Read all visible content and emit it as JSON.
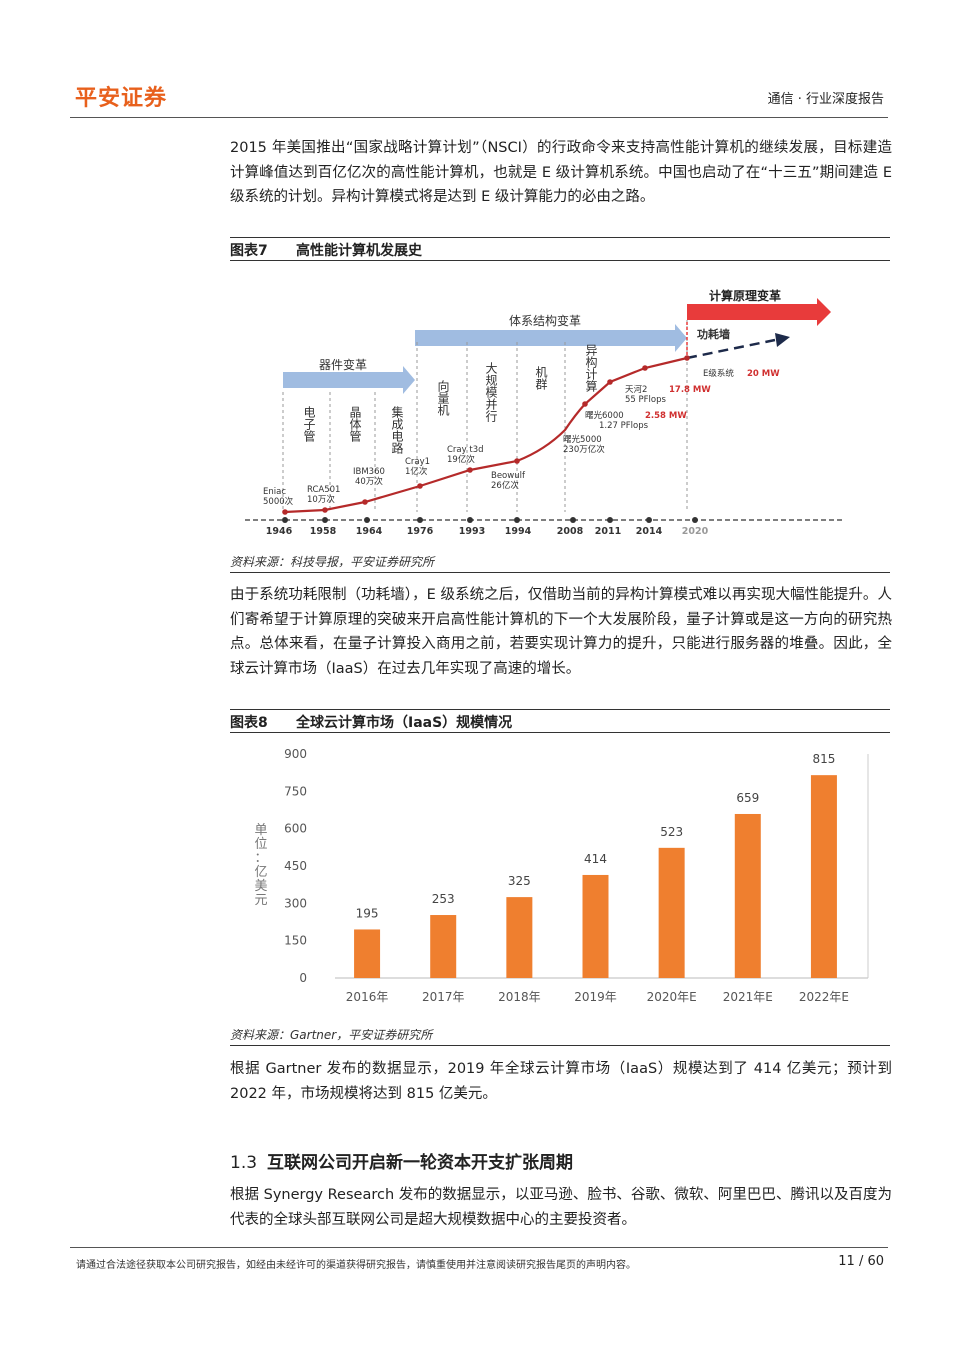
{
  "header": {
    "logo": "平安证券",
    "doc_type": "通信 · 行业深度报告"
  },
  "body": {
    "para1": "2015 年美国推出“国家战略计算计划”（NSCI）的行政命令来支持高性能计算机的继续发展，目标建造计算峰值达到百亿亿次的高性能计算机，也就是 E 级计算机系统。中国也启动了在“十三五”期间建造 E 级系统的计划。异构计算模式将是达到 E 级计算能力的必由之路。",
    "para2": "由于系统功耗限制（功耗墙），E 级系统之后，仅借助当前的异构计算模式难以再实现大幅性能提升。人们寄希望于计算原理的突破来开启高性能计算机的下一个大发展阶段，量子计算或是这一方向的研究热点。总体来看，在量子计算投入商用之前，若要实现计算力的提升，只能进行服务器的堆叠。因此，全球云计算市场（IaaS）在过去几年实现了高速的增长。",
    "para3": "根据 Gartner 发布的数据显示，2019 年全球云计算市场（IaaS）规模达到了 414 亿美元；预计到 2022 年，市场规模将达到 815 亿美元。",
    "section_num": "1.3",
    "section_title": "互联网公司开启新一轮资本开支扩张周期",
    "para4": "根据 Synergy Research 发布的数据显示，以亚马逊、脸书、谷歌、微软、阿里巴巴、腾讯以及百度为代表的全球头部互联网公司是超大规模数据中心的主要投资者。"
  },
  "figure7": {
    "label": "图表7",
    "title": "高性能计算机发展史",
    "source": "资料来源：科技导报，平安证券研究所",
    "years": [
      "1946",
      "1958",
      "1964",
      "1976",
      "1993",
      "1994",
      "2008",
      "2011",
      "2014",
      "2020"
    ],
    "phase_arrows": [
      "器件变革",
      "体系结构变革",
      "计算原理变革"
    ],
    "stages": [
      "电子管",
      "晶体管",
      "集成电路",
      "向量机",
      "大规模并行",
      "机群",
      "异构计算"
    ],
    "milestones": [
      {
        "name": "Eniac",
        "value": "5000次"
      },
      {
        "name": "RCA501",
        "value": "10万次"
      },
      {
        "name": "IBM360",
        "value": "40万次"
      },
      {
        "name": "Cray1",
        "value": "1亿次"
      },
      {
        "name": "Cray t3d",
        "value": "19亿次"
      },
      {
        "name": "Beowulf",
        "value": "26亿次"
      },
      {
        "name": "曙光5000",
        "value": "230万亿次"
      },
      {
        "name": "曙光6000",
        "value": "2.58 MW",
        "extra": "1.27 PFlops"
      },
      {
        "name": "天河2",
        "value": "17.8 MW",
        "extra": "55 PFlops"
      },
      {
        "name": "E级系统",
        "value": "20 MW"
      }
    ],
    "power_wall": "功耗墙"
  },
  "figure8": {
    "label": "图表8",
    "title": "全球云计算市场（IaaS）规模情况",
    "source": "资料来源：Gartner，平安证券研究所",
    "ylabel": "单位：亿美元"
  },
  "chart_data": {
    "type": "bar",
    "categories": [
      "2016年",
      "2017年",
      "2018年",
      "2019年",
      "2020年E",
      "2021年E",
      "2022年E"
    ],
    "values": [
      195,
      253,
      325,
      414,
      523,
      659,
      815
    ],
    "ylabel": "单位：亿美元",
    "ylim": [
      0,
      900
    ],
    "yticks": [
      0,
      150,
      300,
      450,
      600,
      750,
      900
    ],
    "bar_color": "#ef7f2f",
    "grid": false
  },
  "footer": {
    "note": "请通过合法途径获取本公司研究报告，如经由未经许可的渠道获得研究报告，请慎重使用并注意阅读研究报告尾页的声明内容。",
    "page": "11 / 60"
  },
  "colors": {
    "brand": "#e8601c",
    "arrow_blue": "#8fb0dc",
    "arrow_red": "#e83b3b",
    "timeline_red": "#c0282b"
  }
}
